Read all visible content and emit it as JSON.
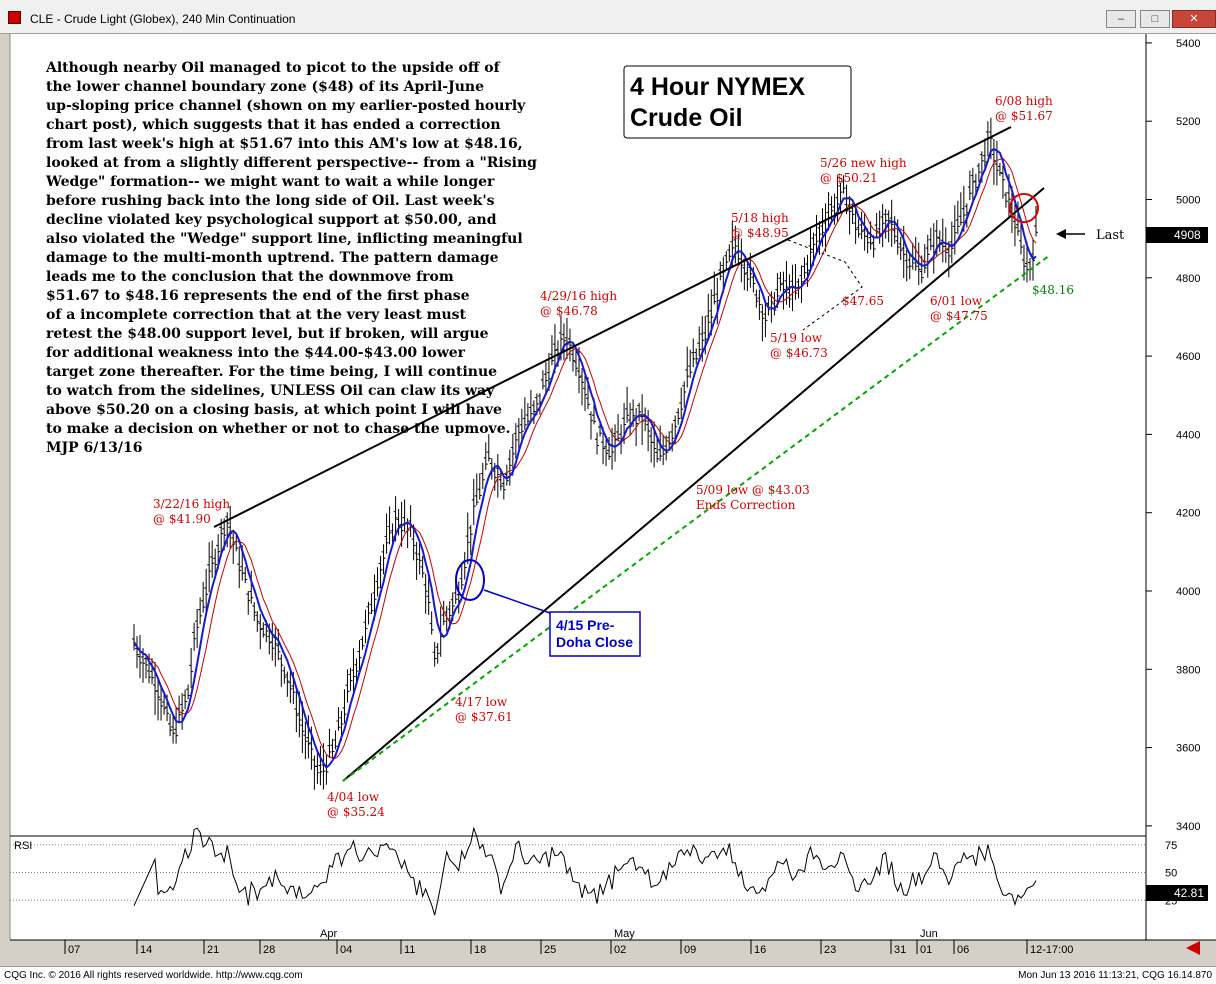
{
  "window": {
    "title": "CLE - Crude Light (Globex), 240 Min Continuation",
    "btn_minimize": "–",
    "btn_maximize": "□",
    "btn_close": "✕",
    "icon": "chart-app-icon"
  },
  "footer": {
    "left": "CQG Inc. © 2016 All rights reserved worldwide. http://www.cqg.com",
    "right": "Mon Jun 13 2016 11:13:21, CQG 16.14.870"
  },
  "chart_data": {
    "type": "candlestick",
    "title": "4 Hour NYMEX Crude Oil",
    "title_lines": [
      "4 Hour NYMEX",
      "Crude Oil"
    ],
    "symbol": "CLE",
    "ylim": [
      3350,
      5450
    ],
    "yticks": [
      3400,
      3600,
      3800,
      4000,
      4200,
      4400,
      4600,
      4800,
      5000,
      5200,
      5400
    ],
    "ytick_labels": [
      "3400",
      "3600",
      "3800",
      "4000",
      "4200",
      "4400",
      "4600",
      "4800",
      "5000",
      "5200",
      "5400"
    ],
    "last_price_label": "4908",
    "last_price": 4908,
    "last_label": "Last",
    "x_day_labels": [
      "07",
      "14",
      "21",
      "28",
      "04",
      "11",
      "18",
      "25",
      "02",
      "09",
      "16",
      "23",
      "31",
      "01",
      "06",
      "12-17:00"
    ],
    "month_labels": [
      "Apr",
      "May",
      "Jun"
    ],
    "price_path": [
      [
        0,
        3870
      ],
      [
        3,
        3760
      ],
      [
        5,
        3630
      ],
      [
        7,
        3740
      ],
      [
        8,
        3900
      ],
      [
        10,
        4060
      ],
      [
        12,
        4190
      ],
      [
        14,
        4050
      ],
      [
        16,
        3930
      ],
      [
        18,
        3880
      ],
      [
        20,
        3780
      ],
      [
        22,
        3640
      ],
      [
        24,
        3530
      ],
      [
        26,
        3600
      ],
      [
        28,
        3760
      ],
      [
        30,
        3900
      ],
      [
        32,
        4070
      ],
      [
        34,
        4190
      ],
      [
        36,
        4150
      ],
      [
        38,
        4010
      ],
      [
        39,
        3820
      ],
      [
        40,
        3920
      ],
      [
        42,
        3990
      ],
      [
        44,
        4200
      ],
      [
        46,
        4340
      ],
      [
        48,
        4280
      ],
      [
        50,
        4420
      ],
      [
        52,
        4460
      ],
      [
        54,
        4580
      ],
      [
        56,
        4660
      ],
      [
        58,
        4560
      ],
      [
        60,
        4400
      ],
      [
        62,
        4360
      ],
      [
        64,
        4440
      ],
      [
        66,
        4450
      ],
      [
        68,
        4330
      ],
      [
        70,
        4420
      ],
      [
        72,
        4560
      ],
      [
        74,
        4650
      ],
      [
        76,
        4790
      ],
      [
        78,
        4890
      ],
      [
        80,
        4800
      ],
      [
        82,
        4700
      ],
      [
        84,
        4780
      ],
      [
        86,
        4760
      ],
      [
        88,
        4880
      ],
      [
        90,
        4960
      ],
      [
        92,
        5020
      ],
      [
        94,
        4920
      ],
      [
        96,
        4900
      ],
      [
        98,
        4950
      ],
      [
        100,
        4860
      ],
      [
        102,
        4820
      ],
      [
        104,
        4900
      ],
      [
        106,
        4880
      ],
      [
        108,
        4990
      ],
      [
        110,
        5100
      ],
      [
        111,
        5160
      ],
      [
        112,
        5080
      ],
      [
        114,
        4970
      ],
      [
        115,
        4880
      ],
      [
        116,
        4816
      ],
      [
        117,
        4908
      ]
    ],
    "rsi": {
      "label": "RSI",
      "ylim": [
        0,
        100
      ],
      "levels": [
        25,
        50,
        75
      ],
      "level_labels": [
        "25",
        "50",
        "75"
      ],
      "current": 42.81,
      "current_label": "42.81"
    },
    "annotations": [
      {
        "lines": [
          "3/22/16 high",
          "@ $41.90"
        ],
        "color": "red"
      },
      {
        "lines": [
          "4/04 low",
          "@ $35.24"
        ],
        "color": "red"
      },
      {
        "lines": [
          "4/17 low",
          "@ $37.61"
        ],
        "color": "red"
      },
      {
        "lines": [
          "4/29/16 high",
          "@ $46.78"
        ],
        "color": "red"
      },
      {
        "lines": [
          "5/09 low @ $43.03",
          "Ends Correction"
        ],
        "color": "red"
      },
      {
        "lines": [
          "5/18 high",
          "@ $48.95"
        ],
        "color": "red"
      },
      {
        "lines": [
          "5/19 low",
          "@ $46.73"
        ],
        "color": "red"
      },
      {
        "lines": [
          "$47.65"
        ],
        "color": "red"
      },
      {
        "lines": [
          "5/26 new high",
          "@ $50.21"
        ],
        "color": "red"
      },
      {
        "lines": [
          "6/01 low",
          "@ $47.75"
        ],
        "color": "red"
      },
      {
        "lines": [
          "6/08 high",
          "@ $51.67"
        ],
        "color": "red"
      },
      {
        "lines": [
          "$48.16"
        ],
        "color": "green"
      }
    ],
    "callout": {
      "lines": [
        "4/15 Pre-",
        "Doha Close"
      ]
    },
    "commentary": [
      "Although nearby Oil managed to picot to the upside off of",
      "the lower channel boundary zone ($48) of its April-June",
      "up-sloping price channel (shown on my earlier-posted hourly",
      "chart post), which suggests that it has ended a correction",
      "from last week's high at $51.67 into this AM's low at $48.16,",
      "looked at from a slightly different perspective-- from a \"Rising",
      "Wedge\" formation-- we might want to wait a while longer",
      "before rushing back into the long side of Oil. Last week's",
      "decline violated key psychological support at $50.00, and",
      "also violated the \"Wedge\" support line, inflicting meaningful",
      "damage to the multi-month uptrend. The pattern damage",
      "leads me to the conclusion that the downmove from",
      "$51.67 to $48.16 represents the end of the first phase",
      "of a incomplete correction that at the very least must",
      "retest the $48.00 support level, but if broken, will argue",
      "for additional weakness into the $44.00-$43.00 lower",
      "target zone thereafter. For the time being, I will continue",
      "to watch from the sidelines, UNLESS Oil can claw its way",
      "above $50.20 on a closing basis, at which point I will have",
      "to make a decision on whether or not to chase the upmove.",
      "MJP 6/13/16"
    ],
    "colors": {
      "background": "#ffffff",
      "price_bars": "#000000",
      "ma_fast": "#1a1acc",
      "ma_slow": "#cc0000",
      "annotation": "#d40000",
      "support_line": "#00aa00",
      "callout": "#0000cc"
    }
  }
}
